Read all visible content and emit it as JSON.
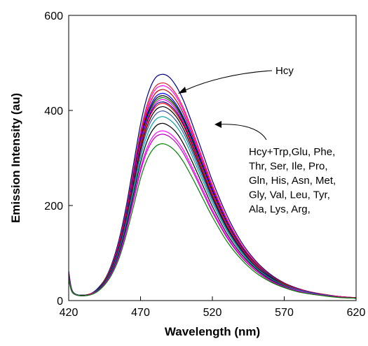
{
  "chart_data": {
    "type": "line",
    "title": "",
    "xlabel": "Wavelength (nm)",
    "ylabel": "Emission Intensity (au)",
    "xlim": [
      420,
      620
    ],
    "ylim": [
      0,
      600
    ],
    "xticks": [
      "420",
      "470",
      "520",
      "570",
      "620"
    ],
    "yticks": [
      "0",
      "200",
      "400",
      "600"
    ],
    "legend": "none",
    "annotations": [
      {
        "text": "Hcy",
        "lines": [
          "Hcy"
        ]
      },
      {
        "text": "Hcy+Trp,Glu, Phe, Thr, Ser, Ile, Pro, Gln, His, Asn, Met, Gly, Val, Leu, Tyr, Ala, Lys, Arg,",
        "lines": [
          "Hcy+Trp,Glu, Phe,",
          "Thr, Ser, Ile, Pro,",
          "Gln, His, Asn, Met,",
          "Gly, Val, Leu, Tyr,",
          "Ala, Lys, Arg,"
        ]
      }
    ],
    "x": [
      420,
      422,
      425,
      430,
      435,
      440,
      445,
      450,
      455,
      460,
      465,
      470,
      475,
      480,
      485,
      490,
      495,
      500,
      505,
      510,
      515,
      520,
      530,
      540,
      550,
      560,
      570,
      580,
      590,
      600,
      610,
      620
    ],
    "series": [
      {
        "color": "#000080",
        "values": [
          62,
          25,
          13,
          11,
          14,
          25,
          44,
          77,
          128,
          198,
          285,
          371,
          433,
          467,
          476,
          470,
          450,
          420,
          380,
          338,
          295,
          252,
          180,
          124,
          84,
          56,
          37,
          25,
          17,
          12,
          8,
          6
        ]
      },
      {
        "color": "#e8202a",
        "values": [
          58,
          24,
          13,
          11,
          14,
          24,
          43,
          74,
          123,
          190,
          274,
          356,
          416,
          449,
          458,
          452,
          433,
          404,
          366,
          325,
          284,
          243,
          173,
          119,
          81,
          54,
          36,
          24,
          17,
          12,
          8,
          6
        ]
      },
      {
        "color": "#ff00ff",
        "values": [
          57,
          24,
          13,
          11,
          14,
          24,
          42,
          73,
          121,
          187,
          270,
          351,
          410,
          443,
          452,
          446,
          428,
          399,
          361,
          321,
          280,
          240,
          171,
          118,
          80,
          53,
          35,
          24,
          16,
          11,
          8,
          6
        ]
      },
      {
        "color": "#c00000",
        "values": [
          56,
          24,
          13,
          11,
          14,
          24,
          42,
          72,
          119,
          184,
          265,
          345,
          403,
          435,
          444,
          438,
          420,
          392,
          355,
          315,
          275,
          236,
          168,
          116,
          79,
          53,
          35,
          24,
          16,
          11,
          8,
          6
        ]
      },
      {
        "color": "#0000ff",
        "values": [
          55,
          24,
          13,
          11,
          14,
          24,
          41,
          71,
          117,
          181,
          260,
          339,
          396,
          427,
          436,
          430,
          412,
          385,
          349,
          310,
          270,
          232,
          165,
          114,
          77,
          52,
          34,
          23,
          16,
          11,
          8,
          5
        ]
      },
      {
        "color": "#000000",
        "values": [
          55,
          24,
          13,
          11,
          14,
          23,
          41,
          70,
          116,
          179,
          257,
          335,
          391,
          422,
          431,
          425,
          408,
          381,
          345,
          306,
          267,
          229,
          163,
          113,
          76,
          51,
          34,
          23,
          16,
          11,
          8,
          5
        ]
      },
      {
        "color": "#008000",
        "values": [
          54,
          23,
          13,
          11,
          14,
          23,
          41,
          70,
          115,
          177,
          255,
          332,
          387,
          418,
          427,
          421,
          404,
          377,
          341,
          303,
          265,
          227,
          162,
          112,
          76,
          51,
          34,
          23,
          16,
          11,
          8,
          5
        ]
      },
      {
        "color": "#ff00ff",
        "values": [
          54,
          23,
          13,
          11,
          14,
          23,
          40,
          69,
          114,
          176,
          253,
          329,
          384,
          414,
          423,
          417,
          400,
          374,
          338,
          300,
          262,
          225,
          160,
          111,
          75,
          50,
          33,
          23,
          16,
          11,
          8,
          5
        ]
      },
      {
        "color": "#00008b",
        "values": [
          53,
          23,
          13,
          11,
          14,
          23,
          40,
          68,
          112,
          174,
          250,
          325,
          380,
          410,
          418,
          412,
          396,
          370,
          335,
          297,
          259,
          222,
          158,
          110,
          74,
          50,
          33,
          22,
          16,
          11,
          8,
          5
        ]
      },
      {
        "color": "#ff0000",
        "values": [
          53,
          23,
          13,
          11,
          14,
          23,
          40,
          68,
          112,
          173,
          248,
          323,
          377,
          406,
          415,
          409,
          392,
          367,
          332,
          295,
          257,
          221,
          157,
          109,
          74,
          49,
          33,
          22,
          15,
          11,
          8,
          5
        ]
      },
      {
        "color": "#000000",
        "values": [
          52,
          23,
          13,
          11,
          13,
          23,
          39,
          67,
          110,
          170,
          244,
          317,
          370,
          399,
          408,
          402,
          386,
          360,
          326,
          290,
          253,
          217,
          154,
          107,
          72,
          49,
          32,
          22,
          15,
          11,
          7,
          5
        ]
      },
      {
        "color": "#2f4f9f",
        "values": [
          51,
          22,
          13,
          11,
          13,
          22,
          38,
          65,
          107,
          166,
          238,
          310,
          362,
          390,
          399,
          393,
          377,
          352,
          319,
          283,
          247,
          212,
          151,
          105,
          71,
          48,
          32,
          22,
          15,
          11,
          7,
          5
        ]
      },
      {
        "color": "#00a0a0",
        "values": [
          50,
          22,
          12,
          11,
          13,
          22,
          37,
          63,
          104,
          161,
          231,
          301,
          351,
          379,
          387,
          381,
          366,
          342,
          310,
          275,
          240,
          206,
          147,
          102,
          69,
          46,
          31,
          21,
          15,
          10,
          7,
          5
        ]
      },
      {
        "color": "#000000",
        "values": [
          48,
          21,
          12,
          11,
          13,
          21,
          36,
          61,
          100,
          155,
          222,
          290,
          339,
          365,
          373,
          367,
          353,
          329,
          298,
          265,
          231,
          198,
          141,
          98,
          67,
          45,
          30,
          20,
          14,
          10,
          7,
          5
        ]
      },
      {
        "color": "#ff00ff",
        "values": [
          47,
          21,
          12,
          10,
          13,
          20,
          35,
          59,
          96,
          149,
          213,
          278,
          325,
          350,
          357,
          352,
          338,
          316,
          286,
          254,
          222,
          190,
          136,
          94,
          64,
          43,
          29,
          20,
          14,
          10,
          7,
          5
        ]
      },
      {
        "color": "#c000c0",
        "values": [
          46,
          20,
          12,
          10,
          12,
          20,
          34,
          58,
          94,
          146,
          209,
          272,
          318,
          343,
          350,
          345,
          331,
          309,
          280,
          249,
          217,
          186,
          133,
          92,
          63,
          42,
          28,
          19,
          13,
          10,
          7,
          5
        ]
      },
      {
        "color": "#008000",
        "values": [
          44,
          20,
          12,
          10,
          12,
          19,
          33,
          55,
          89,
          138,
          197,
          257,
          300,
          323,
          330,
          325,
          312,
          291,
          264,
          235,
          205,
          176,
          125,
          87,
          59,
          40,
          27,
          18,
          13,
          9,
          6,
          5
        ]
      }
    ]
  }
}
